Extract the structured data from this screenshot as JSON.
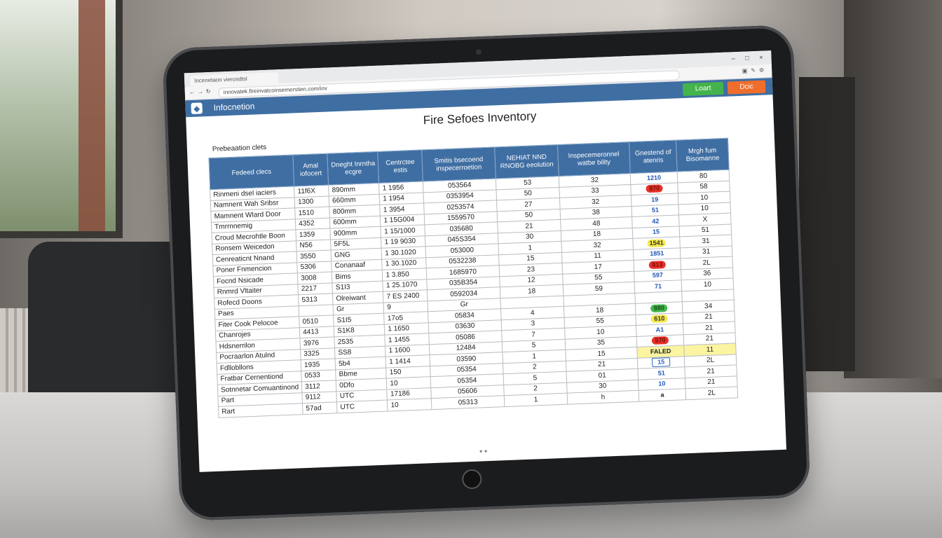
{
  "browser": {
    "tab_title": "Incenetaon vierosdtsl",
    "url": "innovatek.fireinvatcoinsemerstien.com/inv",
    "window_controls": [
      "–",
      "□",
      "×"
    ]
  },
  "app": {
    "title": "Infocnetion",
    "login_label": "Loart",
    "other_label": "Dcic"
  },
  "page": {
    "title": "Fire Sefoes Inventory",
    "section_label": "Prebeaation clets"
  },
  "table": {
    "headers": [
      "Fedeed clecs",
      "Amal iofocert",
      "Dneght Inrntha ecgre",
      "Centrctee estis",
      "Smitis bsecoend inspecerroetion",
      "NEHIAT NND RNOBG eeolution",
      "Inspecemeronnel watbe bility",
      "Gnestend of atenris",
      "Mrgh fum Bisomanne"
    ],
    "rows": [
      {
        "item": "Rinmeni dsel iaciers",
        "a": "11f6X",
        "b": "890mm",
        "c": "1 1956",
        "d": "053564",
        "e": "53",
        "f": "32",
        "status": "1210",
        "status_style": "blue",
        "g": "80"
      },
      {
        "item": "Namnent Wah Sribsr",
        "a": "1300",
        "b": "660mm",
        "c": "1 1954",
        "d": "0353954",
        "e": "50",
        "f": "33",
        "status": "870",
        "status_style": "red",
        "g": "58"
      },
      {
        "item": "Mamnent Wlard Door",
        "a": "1510",
        "b": "800mm",
        "c": "1 3954",
        "d": "0253574",
        "e": "27",
        "f": "32",
        "status": "19",
        "status_style": "blue",
        "g": "10"
      },
      {
        "item": "Tmrrnnemig",
        "a": "4352",
        "b": "600mm",
        "c": "1 15G004",
        "d": "1559570",
        "e": "50",
        "f": "38",
        "status": "51",
        "status_style": "blue",
        "g": "10"
      },
      {
        "item": "Croud Mecrohtle Boon",
        "a": "1359",
        "b": "900mm",
        "c": "1 15/1000",
        "d": "035680",
        "e": "21",
        "f": "48",
        "status": "42",
        "status_style": "blue",
        "g": "X"
      },
      {
        "item": "Ronsem Weicedon",
        "a": "N56",
        "b": "5F5L",
        "c": "1 19 9030",
        "d": "045S354",
        "e": "30",
        "f": "18",
        "status": "15",
        "status_style": "blue",
        "g": "51"
      },
      {
        "item": "Cenreaticnt Nnand",
        "a": "3550",
        "b": "GNG",
        "c": "1 30.1020",
        "d": "053000",
        "e": "1",
        "f": "32",
        "status": "1541",
        "status_style": "yellow",
        "g": "31"
      },
      {
        "item": "Poner Fnmencion",
        "a": "5306",
        "b": "Conanaaf",
        "c": "1 30.1020",
        "d": "0532238",
        "e": "15",
        "f": "11",
        "status": "1851",
        "status_style": "blue",
        "g": "31"
      },
      {
        "item": "Focnd Nsicade",
        "a": "3008",
        "b": "Bims",
        "c": "1 3.850",
        "d": "1685970",
        "e": "23",
        "f": "17",
        "status": "813",
        "status_style": "red",
        "g": "2L"
      },
      {
        "item": "Rnmrd Vltaiter",
        "a": "2217",
        "b": "S1I3",
        "c": "1 25.1070",
        "d": "035B354",
        "e": "12",
        "f": "55",
        "status": "597",
        "status_style": "blue",
        "g": "36"
      },
      {
        "item": "Rofecd Doons",
        "a": "5313",
        "b": "Olreiwant",
        "c": "7 ES 2400",
        "d": "0592034",
        "e": "18",
        "f": "59",
        "status": "71",
        "status_style": "blue",
        "g": "10"
      },
      {
        "item": "Paes",
        "a": "",
        "b": "Gr",
        "c": "9",
        "d": "Gr",
        "e": "",
        "f": "",
        "status": "",
        "status_style": "none",
        "g": ""
      },
      {
        "item": "Fiter Cook Pelocoe",
        "a": "0510",
        "b": "S1I5",
        "c": "17o5",
        "d": "05834",
        "e": "4",
        "f": "18",
        "status": "880",
        "status_style": "green",
        "g": "34"
      },
      {
        "item": "Chanrojes",
        "a": "4413",
        "b": "S1K8",
        "c": "1 1650",
        "d": "03630",
        "e": "3",
        "f": "55",
        "status": "610",
        "status_style": "yellow",
        "g": "21"
      },
      {
        "item": "Hdsnerrilon",
        "a": "3976",
        "b": "2535",
        "c": "1 1455",
        "d": "05086",
        "e": "7",
        "f": "10",
        "status": "A1",
        "status_style": "blue",
        "g": "21"
      },
      {
        "item": "Pocraarlon Atulnd",
        "a": "3325",
        "b": "SS8",
        "c": "1 1600",
        "d": "12484",
        "e": "5",
        "f": "35",
        "status": "570",
        "status_style": "red",
        "g": "21"
      },
      {
        "item": "Fdllobllons",
        "a": "1935",
        "b": "5b4",
        "c": "1 1414",
        "d": "03590",
        "e": "1",
        "f": "15",
        "status": "FALED",
        "status_style": "failed",
        "g": "11"
      },
      {
        "item": "Fratbar Cernentiond",
        "a": "0533",
        "b": "Bbme",
        "c": "150",
        "d": "05354",
        "e": "2",
        "f": "21",
        "status": "15",
        "status_style": "boxed",
        "g": "2L"
      },
      {
        "item": "Sotnnetar Comuantinond",
        "a": "3112",
        "b": "0Dfo",
        "c": "10",
        "d": "05354",
        "e": "5",
        "f": "01",
        "status": "51",
        "status_style": "blue",
        "g": "21"
      },
      {
        "item": "Part",
        "a": "9112",
        "b": "UTC",
        "c": "17186",
        "d": "05606",
        "e": "2",
        "f": "30",
        "status": "10",
        "status_style": "blue",
        "g": "21"
      },
      {
        "item": "Rart",
        "a": "57ad",
        "b": "UTC",
        "c": "10",
        "d": "05313",
        "e": "1",
        "f": "h",
        "status": "a",
        "status_style": "plain",
        "g": "2L"
      }
    ]
  },
  "colors": {
    "header_blue": "#3f6ea3",
    "button_green": "#45b34b",
    "button_orange": "#ef6e2c",
    "status_red": "#e53228",
    "status_yellow": "#f4e84c",
    "status_green": "#42b94c"
  },
  "icons": {
    "logo": "diamond-logo-icon",
    "back": "back-arrow-icon",
    "forward": "forward-arrow-icon",
    "reload": "reload-icon"
  }
}
